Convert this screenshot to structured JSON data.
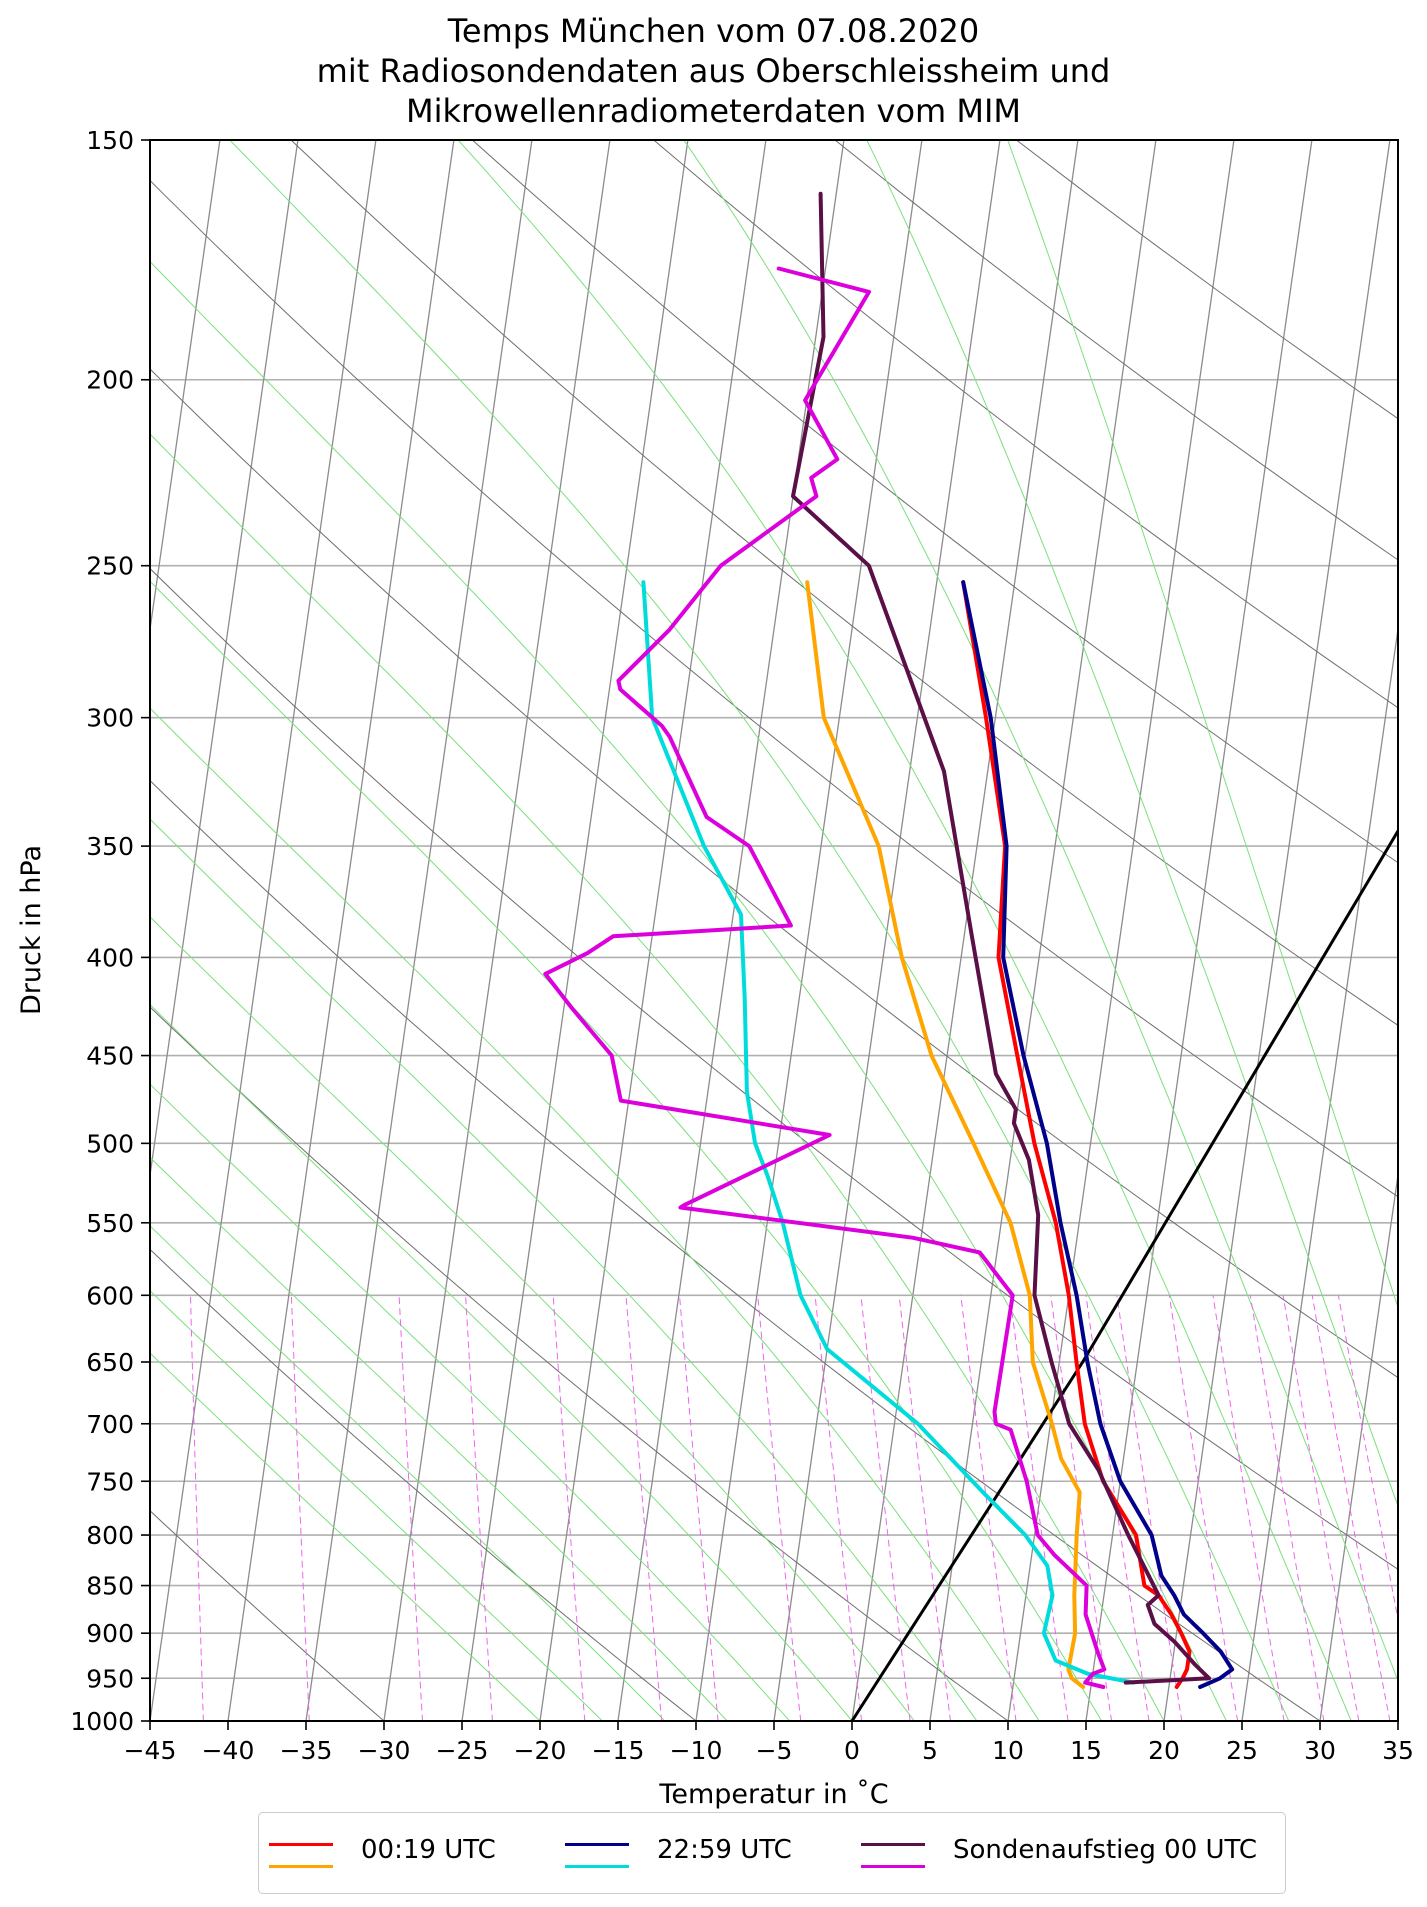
{
  "title_lines": [
    "Temps München vom 07.08.2020",
    "mit Radiosondendaten aus Oberschleissheim und",
    "Mikrowellenradiometerdaten vom MIM"
  ],
  "chart_data": {
    "type": "line",
    "diagram": "skew-T log-p",
    "xlabel": "Temperatur in $^\\circ$C",
    "xlabel_display": "Temperatur in ˚C",
    "ylabel": "Druck in hPa",
    "xlim": [
      -45,
      35
    ],
    "ylim": [
      1000,
      150
    ],
    "y_scale": "log",
    "x_ticks": [
      "−45",
      "−40",
      "−35",
      "−30",
      "−25",
      "−20",
      "−15",
      "−10",
      "−5",
      "0",
      "5",
      "10",
      "15",
      "20",
      "25",
      "30",
      "35"
    ],
    "y_ticks": [
      "150",
      "200",
      "250",
      "300",
      "350",
      "400",
      "450",
      "500",
      "550",
      "600",
      "650",
      "700",
      "750",
      "800",
      "850",
      "900",
      "950",
      "1000"
    ],
    "grid": true,
    "background_lines": [
      "isotherms (gray)",
      "dry adiabats (gray)",
      "moist adiabats (light green)",
      "mixing ratio lines (magenta dashed)"
    ],
    "reference_line": {
      "color": "#000000",
      "points": [
        [
          0,
          1000
        ],
        [
          11.5,
          650
        ],
        [
          35,
          245
        ]
      ]
    },
    "legend_position": "bottom-center",
    "legend": [
      {
        "label": "00:19 UTC",
        "colors": [
          "#ff0000",
          "#ffa500"
        ]
      },
      {
        "label": "22:59 UTC",
        "colors": [
          "#00008b",
          "#00dcdc"
        ]
      },
      {
        "label": "Sondenaufstieg 00 UTC",
        "colors": [
          "#5a0f46",
          "#dc00dc"
        ]
      }
    ],
    "series": [
      {
        "legend_group": "00:19 UTC",
        "kind": "temperature",
        "color": "#ff0000",
        "points": [
          [
            20.5,
            960
          ],
          [
            20.8,
            950
          ],
          [
            21.0,
            940
          ],
          [
            21.0,
            920
          ],
          [
            20.3,
            900
          ],
          [
            19.5,
            880
          ],
          [
            18.5,
            860
          ],
          [
            17.5,
            850
          ],
          [
            16.5,
            800
          ],
          [
            13.9,
            750
          ],
          [
            12.2,
            700
          ],
          [
            11.1,
            650
          ],
          [
            10.0,
            600
          ],
          [
            8.5,
            550
          ],
          [
            6.4,
            500
          ],
          [
            4.5,
            450
          ],
          [
            2.4,
            400
          ],
          [
            1.8,
            350
          ],
          [
            -0.6,
            300
          ],
          [
            -3.3,
            255
          ]
        ]
      },
      {
        "legend_group": "00:19 UTC",
        "kind": "dewpoint",
        "color": "#ffa500",
        "points": [
          [
            14.5,
            960
          ],
          [
            13.7,
            950
          ],
          [
            13.4,
            940
          ],
          [
            13.5,
            900
          ],
          [
            13.1,
            860
          ],
          [
            12.7,
            800
          ],
          [
            12.5,
            760
          ],
          [
            11.0,
            730
          ],
          [
            10.1,
            700
          ],
          [
            8.3,
            650
          ],
          [
            7.5,
            600
          ],
          [
            5.6,
            550
          ],
          [
            2.5,
            500
          ],
          [
            -1.0,
            450
          ],
          [
            -3.8,
            400
          ],
          [
            -6.3,
            350
          ],
          [
            -11.0,
            300
          ],
          [
            -13.3,
            255
          ]
        ]
      },
      {
        "legend_group": "22:59 UTC",
        "kind": "temperature",
        "color": "#00008b",
        "points": [
          [
            22.0,
            960
          ],
          [
            23.2,
            950
          ],
          [
            23.9,
            940
          ],
          [
            23.0,
            920
          ],
          [
            21.7,
            900
          ],
          [
            20.3,
            880
          ],
          [
            19.5,
            860
          ],
          [
            18.5,
            840
          ],
          [
            17.5,
            800
          ],
          [
            15.0,
            750
          ],
          [
            13.2,
            700
          ],
          [
            11.8,
            650
          ],
          [
            10.5,
            600
          ],
          [
            8.8,
            550
          ],
          [
            7.2,
            500
          ],
          [
            4.9,
            450
          ],
          [
            2.7,
            400
          ],
          [
            1.9,
            350
          ],
          [
            -0.3,
            300
          ],
          [
            -3.3,
            255
          ]
        ]
      },
      {
        "legend_group": "22:59 UTC",
        "kind": "dewpoint",
        "color": "#00dcdc",
        "points": [
          [
            17.7,
            955
          ],
          [
            14.7,
            945
          ],
          [
            12.5,
            930
          ],
          [
            11.5,
            900
          ],
          [
            11.7,
            860
          ],
          [
            11.1,
            830
          ],
          [
            9.4,
            800
          ],
          [
            6.3,
            760
          ],
          [
            1.5,
            700
          ],
          [
            -5.0,
            640
          ],
          [
            -7.2,
            600
          ],
          [
            -9.0,
            550
          ],
          [
            -10.4,
            520
          ],
          [
            -11.5,
            500
          ],
          [
            -12.5,
            470
          ],
          [
            -13.5,
            420
          ],
          [
            -14.5,
            380
          ],
          [
            -17.5,
            350
          ],
          [
            -22.0,
            300
          ],
          [
            -23.8,
            255
          ]
        ]
      },
      {
        "legend_group": "Sondenaufstieg 00 UTC",
        "kind": "temperature",
        "color": "#5a0f46",
        "points": [
          [
            17.2,
            955
          ],
          [
            22.5,
            950
          ],
          [
            21.5,
            935
          ],
          [
            20.0,
            910
          ],
          [
            18.5,
            890
          ],
          [
            17.9,
            870
          ],
          [
            18.5,
            860
          ],
          [
            16.0,
            800
          ],
          [
            13.5,
            740
          ],
          [
            11.2,
            700
          ],
          [
            9.5,
            650
          ],
          [
            7.8,
            600
          ],
          [
            7.3,
            545
          ],
          [
            6.2,
            510
          ],
          [
            4.9,
            488
          ],
          [
            4.9,
            480
          ],
          [
            3.3,
            460
          ],
          [
            0.5,
            390
          ],
          [
            -2.8,
            320
          ],
          [
            -9.5,
            250
          ],
          [
            -15.0,
            230
          ],
          [
            -14.5,
            190
          ],
          [
            -16.0,
            160
          ]
        ]
      },
      {
        "legend_group": "Sondenaufstieg 00 UTC",
        "kind": "dewpoint",
        "color": "#dc00dc",
        "points": [
          [
            15.8,
            960
          ],
          [
            14.6,
            955
          ],
          [
            15.0,
            945
          ],
          [
            15.7,
            940
          ],
          [
            15.1,
            920
          ],
          [
            14.0,
            880
          ],
          [
            13.8,
            850
          ],
          [
            11.5,
            820
          ],
          [
            10.2,
            800
          ],
          [
            9.0,
            750
          ],
          [
            7.5,
            705
          ],
          [
            6.5,
            700
          ],
          [
            6.3,
            690
          ],
          [
            6.4,
            600
          ],
          [
            3.9,
            570
          ],
          [
            -0.5,
            560
          ],
          [
            -15.7,
            540
          ],
          [
            -15.4,
            538
          ],
          [
            -6.8,
            495
          ],
          [
            -20.5,
            475
          ],
          [
            -21.5,
            450
          ],
          [
            -24.5,
            425
          ],
          [
            -26.5,
            408
          ],
          [
            -24.0,
            398
          ],
          [
            -22.5,
            390
          ],
          [
            -11.2,
            385
          ],
          [
            -14.6,
            350
          ],
          [
            -17.6,
            338
          ],
          [
            -20.7,
            307
          ],
          [
            -21.3,
            303
          ],
          [
            -24.3,
            290
          ],
          [
            -24.5,
            287
          ],
          [
            -21.7,
            270
          ],
          [
            -19.0,
            250
          ],
          [
            -13.5,
            230
          ],
          [
            -14.0,
            225
          ],
          [
            -12.5,
            220
          ],
          [
            -15.1,
            205
          ],
          [
            -12.0,
            180
          ],
          [
            -18.0,
            175
          ]
        ]
      }
    ]
  },
  "legend_labels": [
    "00:19 UTC",
    "22:59 UTC",
    "Sondenaufstieg 00 UTC"
  ]
}
